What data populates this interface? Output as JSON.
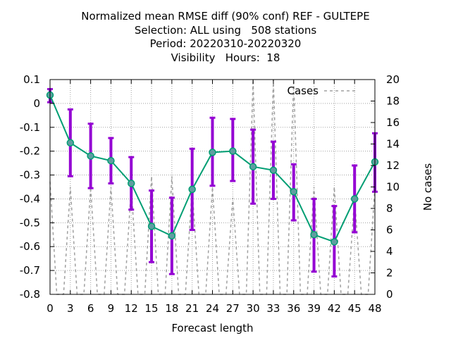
{
  "chart_data": {
    "type": "line",
    "title_lines": [
      "Normalized mean RMSE diff (90% conf) REF - GULTEPE",
      "Selection: ALL using   508 stations",
      "Period: 20220310-20220320",
      "Visibility   Hours:  18"
    ],
    "xlabel": "Forecast length",
    "ylabel": "",
    "y2label": "No cases",
    "xlim": [
      0,
      48
    ],
    "ylim": [
      -0.8,
      0.1
    ],
    "y2lim": [
      0,
      20
    ],
    "xticks": [
      "0",
      "3",
      "6",
      "9",
      "12",
      "15",
      "18",
      "21",
      "24",
      "27",
      "30",
      "33",
      "36",
      "39",
      "42",
      "45",
      "48"
    ],
    "yticks": [
      "0.1",
      "0",
      "-0.1",
      "-0.2",
      "-0.3",
      "-0.4",
      "-0.5",
      "-0.6",
      "-0.7",
      "-0.8"
    ],
    "y2ticks": [
      "20",
      "18",
      "16",
      "14",
      "12",
      "10",
      "8",
      "6",
      "4",
      "2",
      "0"
    ],
    "grid": true,
    "legend_position": "top-right",
    "series": [
      {
        "kind": "mean",
        "color": "#009e73",
        "x": [
          0,
          3,
          6,
          9,
          12,
          15,
          18,
          21,
          24,
          27,
          30,
          33,
          36,
          39,
          42,
          45,
          48
        ],
        "y": [
          0.035,
          -0.165,
          -0.22,
          -0.24,
          -0.335,
          -0.515,
          -0.555,
          -0.36,
          -0.205,
          -0.2,
          -0.265,
          -0.28,
          -0.37,
          -0.55,
          -0.58,
          -0.4,
          -0.245
        ],
        "err_low": [
          0.005,
          -0.305,
          -0.355,
          -0.335,
          -0.445,
          -0.665,
          -0.715,
          -0.53,
          -0.345,
          -0.325,
          -0.42,
          -0.4,
          -0.49,
          -0.705,
          -0.725,
          -0.54,
          -0.37
        ],
        "err_high": [
          0.06,
          -0.025,
          -0.085,
          -0.145,
          -0.225,
          -0.365,
          -0.395,
          -0.19,
          -0.06,
          -0.065,
          -0.11,
          -0.16,
          -0.255,
          -0.4,
          -0.43,
          -0.26,
          -0.125
        ],
        "err_color": "#9400d3"
      },
      {
        "kind": "cases",
        "name": "Cases",
        "axis": "y2",
        "color": "#a0a0a0",
        "x": [
          0,
          1,
          2,
          3,
          4,
          5,
          6,
          7,
          8,
          9,
          10,
          11,
          12,
          13,
          14,
          15,
          16,
          17,
          18,
          19,
          20,
          21,
          22,
          23,
          24,
          25,
          26,
          27,
          28,
          29,
          30,
          31,
          32,
          33,
          34,
          35,
          36,
          37,
          38,
          39,
          40,
          41,
          42,
          43,
          44,
          45,
          46,
          47,
          48
        ],
        "y": [
          10.5,
          0,
          0,
          10,
          0,
          0,
          10,
          0,
          0,
          10,
          0,
          0,
          10,
          0,
          0,
          11,
          0,
          0,
          11,
          0,
          0,
          10,
          0,
          0,
          10,
          0,
          0,
          9,
          0,
          0,
          20,
          0,
          0,
          20,
          0,
          0,
          20,
          0,
          0,
          10,
          0,
          0,
          10,
          0,
          0,
          9,
          0,
          0,
          10
        ]
      }
    ]
  }
}
